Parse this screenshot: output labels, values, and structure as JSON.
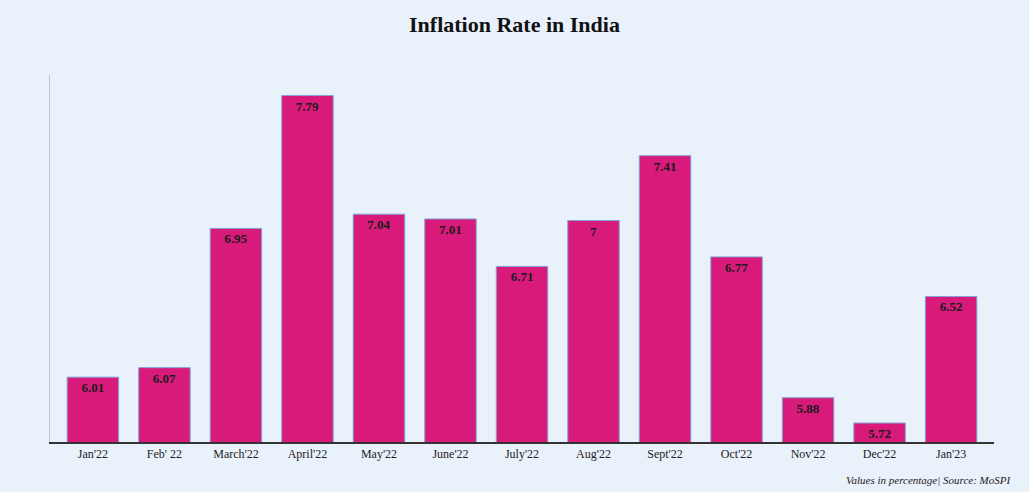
{
  "chart_data": {
    "type": "bar",
    "title": "Inflation Rate in India",
    "categories": [
      "Jan'22",
      "Feb' 22",
      "March'22",
      "April'22",
      "May'22",
      "June'22",
      "July'22",
      "Aug'22",
      "Sept'22",
      "Oct'22",
      "Nov'22",
      "Dec'22",
      "Jan'23"
    ],
    "values": [
      6.01,
      6.07,
      6.95,
      7.79,
      7.04,
      7.01,
      6.71,
      7,
      7.41,
      6.77,
      5.88,
      5.72,
      6.52
    ],
    "color": "#d81b7b",
    "ylim": [
      5.6,
      7.92
    ],
    "yticks": [],
    "grid": false,
    "data_labels": true,
    "tick_labels": "x",
    "annotations": [
      "Values in percentage| Source: MoSPI"
    ]
  }
}
